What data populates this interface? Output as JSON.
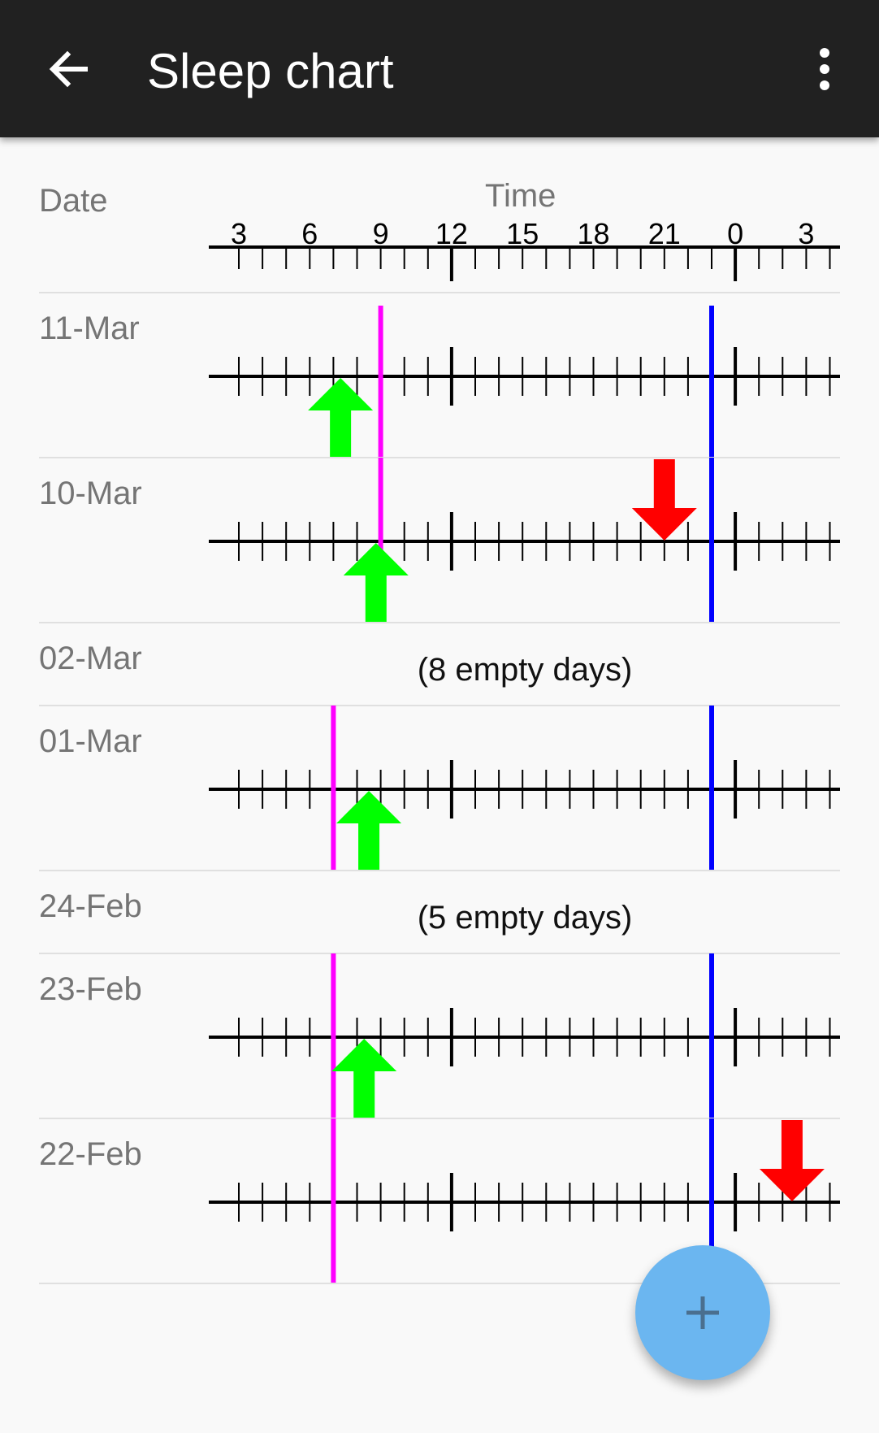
{
  "appbar": {
    "title": "Sleep chart",
    "back_icon": "arrow-left-icon",
    "menu_icon": "more-vert-icon"
  },
  "header": {
    "date_label": "Date",
    "time_label": "Time",
    "tick_labels": [
      "3",
      "6",
      "9",
      "12",
      "15",
      "18",
      "21",
      "0",
      "3"
    ]
  },
  "colors": {
    "wake_up": "#00ff00",
    "go_to_bed": "#ff0000",
    "magenta_line": "#ff00ff",
    "blue_line": "#0000ff",
    "fab": "#6bb6f0"
  },
  "rows": [
    {
      "type": "day",
      "date": "11-Mar",
      "magenta_hour": 9.0,
      "blue_hour": 23.0,
      "wake_up_hours": [
        7.3
      ],
      "go_to_bed_hours": []
    },
    {
      "type": "day",
      "date": "10-Mar",
      "magenta_hour": 9.0,
      "blue_hour": 23.0,
      "wake_up_hours": [
        8.8
      ],
      "go_to_bed_hours": [
        21.0
      ]
    },
    {
      "type": "gap",
      "date": "02-Mar",
      "text": "(8 empty days)"
    },
    {
      "type": "day",
      "date": "01-Mar",
      "magenta_hour": 7.0,
      "blue_hour": 23.0,
      "wake_up_hours": [
        8.5
      ],
      "go_to_bed_hours": []
    },
    {
      "type": "gap",
      "date": "24-Feb",
      "text": "(5 empty days)"
    },
    {
      "type": "day",
      "date": "23-Feb",
      "magenta_hour": 7.0,
      "blue_hour": 23.0,
      "wake_up_hours": [
        8.3
      ],
      "go_to_bed_hours": []
    },
    {
      "type": "day",
      "date": "22-Feb",
      "magenta_hour": 7.0,
      "blue_hour": 23.0,
      "wake_up_hours": [],
      "go_to_bed_hours": [
        26.4
      ]
    }
  ],
  "fab": {
    "label": "+",
    "icon": "plus-icon"
  }
}
